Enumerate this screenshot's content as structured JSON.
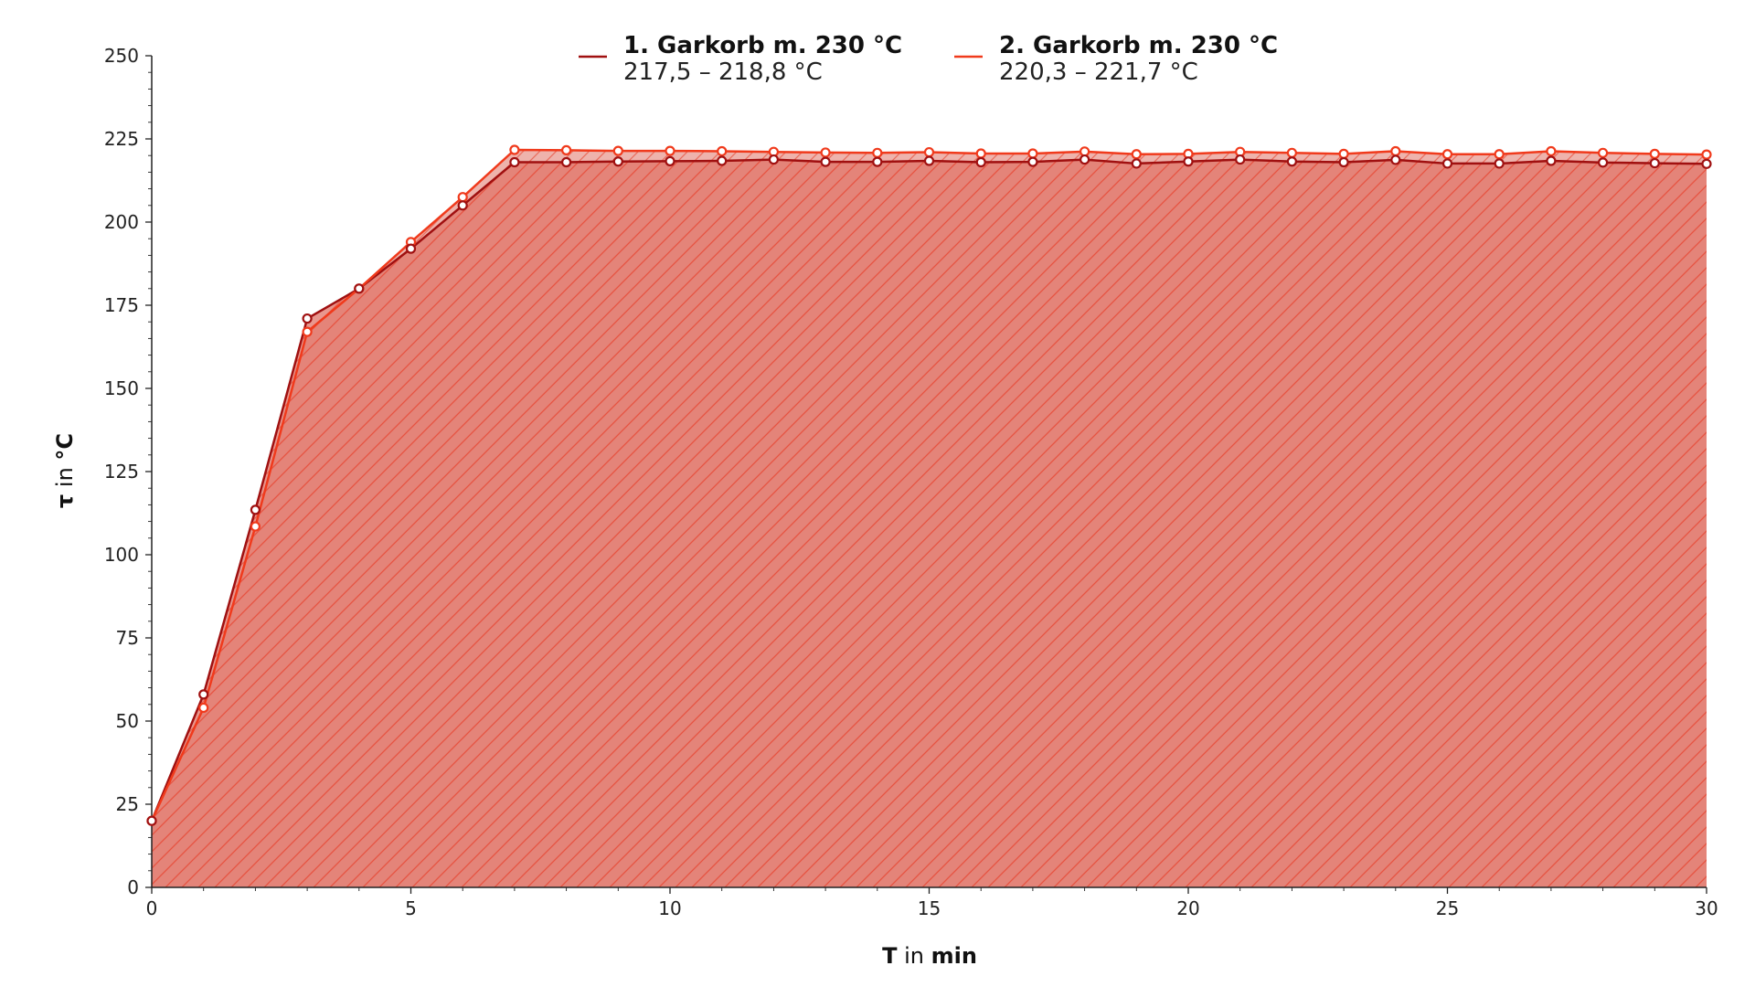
{
  "chart_data": {
    "type": "line",
    "title": "",
    "xlabel": {
      "symbol": "T",
      "connector": "in",
      "unit": "min"
    },
    "ylabel": {
      "symbol": "τ",
      "connector": "in",
      "unit": "°C"
    },
    "xlim": [
      0,
      30
    ],
    "ylim": [
      0,
      250
    ],
    "xticks": [
      0,
      5,
      10,
      15,
      20,
      25,
      30
    ],
    "yticks": [
      0,
      25,
      50,
      75,
      100,
      125,
      150,
      175,
      200,
      225,
      250
    ],
    "grid": false,
    "legend_position": "top-center",
    "x": [
      0,
      1,
      2,
      3,
      4,
      5,
      6,
      7,
      8,
      9,
      10,
      11,
      12,
      13,
      14,
      15,
      16,
      17,
      18,
      19,
      20,
      21,
      22,
      23,
      24,
      25,
      26,
      27,
      28,
      29,
      30
    ],
    "series": [
      {
        "name": "1. Garkorb m. 230 °C",
        "range_label": "217,5 – 218,8 °C",
        "color": "#a01010",
        "values": [
          20,
          58,
          113.5,
          171,
          180,
          192,
          205,
          218,
          218,
          218.2,
          218.3,
          218.4,
          218.8,
          218.1,
          218.1,
          218.4,
          218,
          218.1,
          218.8,
          217.6,
          218.2,
          218.8,
          218.2,
          218,
          218.7,
          217.6,
          217.6,
          218.4,
          217.9,
          217.7,
          217.5
        ]
      },
      {
        "name": "2. Garkorb m. 230 °C",
        "range_label": "220,3 – 221,7 °C",
        "color": "#f03a1c",
        "values": [
          20,
          54,
          108.5,
          167,
          180,
          194,
          207.5,
          221.7,
          221.6,
          221.4,
          221.4,
          221.3,
          221.1,
          220.9,
          220.8,
          221,
          220.6,
          220.6,
          221.2,
          220.4,
          220.5,
          221.1,
          220.8,
          220.5,
          221.3,
          220.4,
          220.4,
          221.3,
          220.8,
          220.5,
          220.3
        ]
      }
    ],
    "fill": {
      "color": "#e07468",
      "hatch_color": "#e8402a"
    }
  }
}
